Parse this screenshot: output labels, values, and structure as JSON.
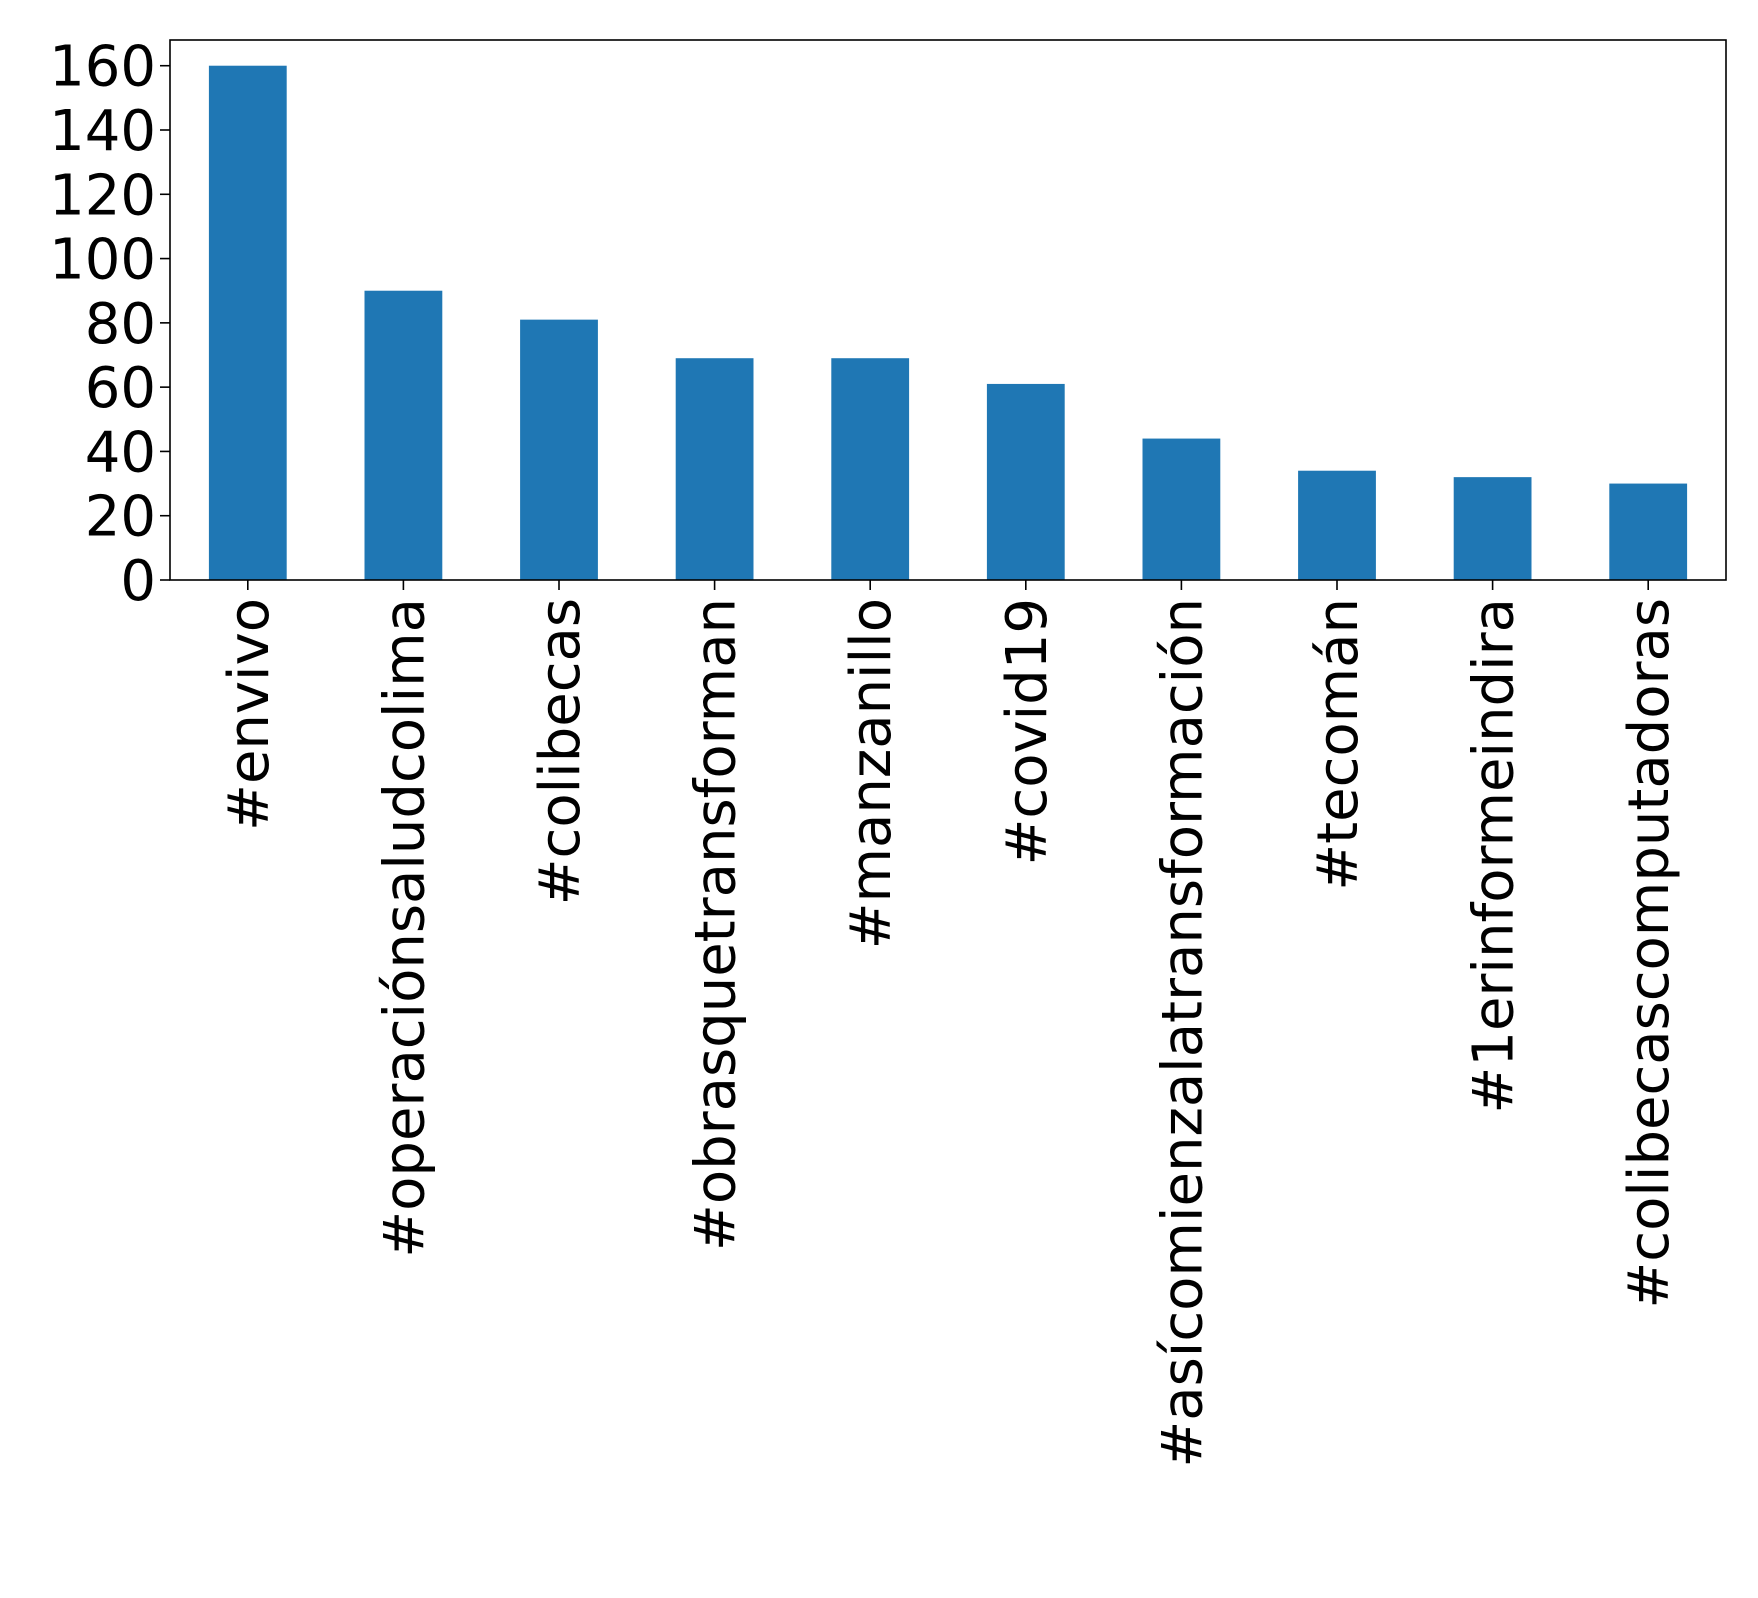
{
  "chart_data": {
    "type": "bar",
    "categories": [
      "#envivo",
      "#operaciónsaludcolima",
      "#colibecas",
      "#obrasquetransforman",
      "#manzanillo",
      "#covid19",
      "#asícomienzalatransformación",
      "#tecomán",
      "#1erinformeindira",
      "#colibecascomputadoras"
    ],
    "values": [
      160,
      90,
      81,
      69,
      69,
      61,
      44,
      34,
      32,
      30
    ],
    "title": "",
    "xlabel": "",
    "ylabel": "",
    "ylim": [
      0,
      168
    ],
    "yticks": [
      0,
      20,
      40,
      60,
      80,
      100,
      120,
      140,
      160
    ],
    "grid": false,
    "legend": "none",
    "bar_color": "#1f77b4"
  }
}
